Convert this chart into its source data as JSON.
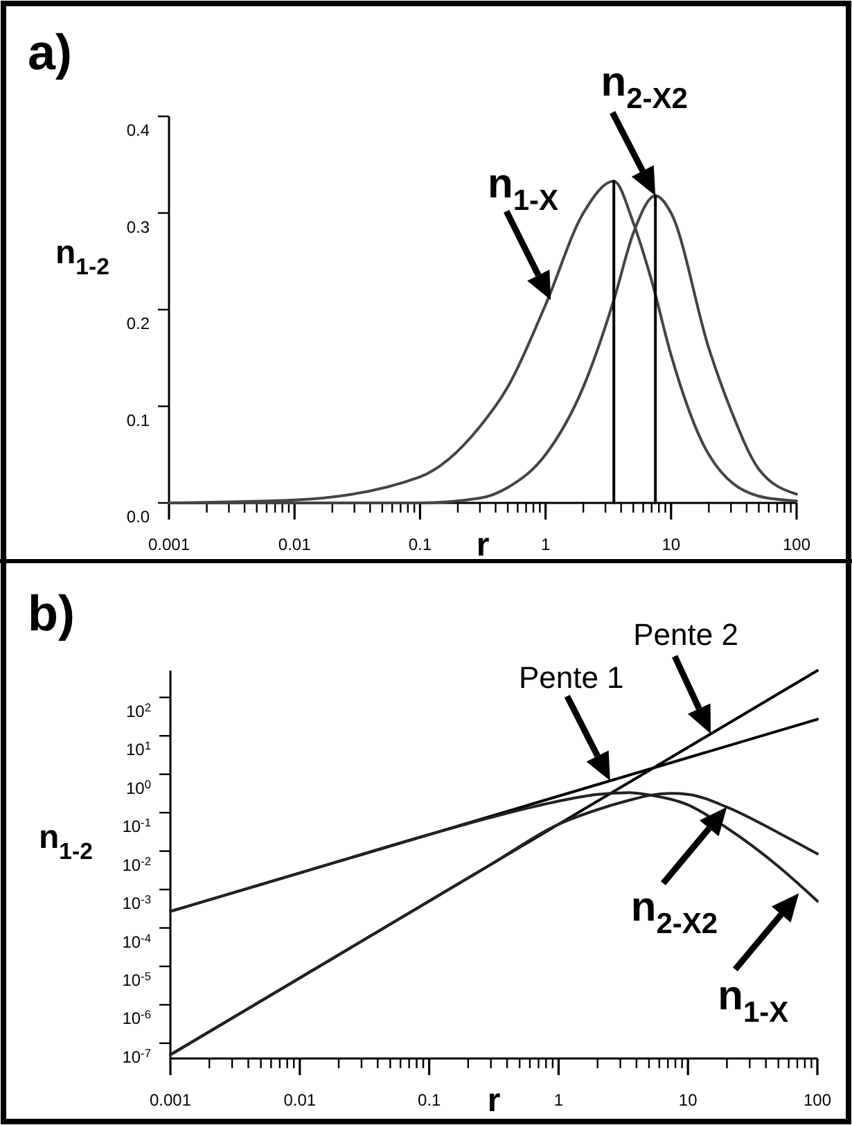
{
  "chart_data": [
    {
      "type": "line",
      "title": "a)",
      "xlabel": "r",
      "ylabel": "n$_{1-2}$",
      "log": "x",
      "grid": false,
      "xlim": [
        0.001,
        100
      ],
      "ylim": [
        0,
        0.4
      ],
      "xticks": [
        0.001,
        {
          "value": 0.002,
          "label": null
        },
        {
          "value": 0.003,
          "label": null
        },
        {
          "value": 0.004,
          "label": null
        },
        {
          "value": 0.005,
          "label": null
        },
        {
          "value": 0.006,
          "label": null
        },
        {
          "value": 0.007,
          "label": null
        },
        {
          "value": 0.008,
          "label": null
        },
        {
          "value": 0.009,
          "label": null
        },
        0.01,
        {
          "value": 0.02,
          "label": null
        },
        {
          "value": 0.03,
          "label": null
        },
        {
          "value": 0.04,
          "label": null
        },
        {
          "value": 0.05,
          "label": null
        },
        {
          "value": 0.06,
          "label": null
        },
        {
          "value": 0.07,
          "label": null
        },
        {
          "value": 0.08,
          "label": null
        },
        {
          "value": 0.09,
          "label": null
        },
        0.1,
        {
          "value": 0.2,
          "label": null
        },
        {
          "value": 0.3,
          "label": null
        },
        {
          "value": 0.4,
          "label": null
        },
        {
          "value": 0.5,
          "label": null
        },
        {
          "value": 0.6,
          "label": null
        },
        {
          "value": 0.7,
          "label": null
        },
        {
          "value": 0.8,
          "label": null
        },
        {
          "value": 0.9,
          "label": null
        },
        1,
        {
          "value": 2,
          "label": null
        },
        {
          "value": 3,
          "label": null
        },
        {
          "value": 4,
          "label": null
        },
        {
          "value": 5,
          "label": null
        },
        {
          "value": 6,
          "label": null
        },
        {
          "value": 7,
          "label": null
        },
        {
          "value": 8,
          "label": null
        },
        {
          "value": 9,
          "label": null
        },
        10,
        {
          "value": 20,
          "label": null
        },
        {
          "value": 30,
          "label": null
        },
        {
          "value": 40,
          "label": null
        },
        {
          "value": 50,
          "label": null
        },
        {
          "value": 60,
          "label": null
        },
        {
          "value": 70,
          "label": null
        },
        {
          "value": 80,
          "label": null
        },
        {
          "value": 90,
          "label": null
        },
        100
      ],
      "yticks": [
        {
          "value": 0,
          "label": "0.0"
        },
        0.1,
        0.2,
        0.3,
        0.4
      ],
      "series": [
        {
          "color": "#444444",
          "x": [
            0.001,
            0.01,
            0.1,
            0.3,
            0.5,
            1,
            2,
            3.5,
            5,
            7,
            10,
            20,
            50,
            100
          ],
          "values": [
            0,
            0.003,
            0.027,
            0.079,
            0.12,
            0.205,
            0.3,
            0.333,
            0.29,
            0.23,
            0.153,
            0.05,
            0.007,
            0.002
          ]
        },
        {
          "color": "#444444",
          "x": [
            0.001,
            0.01,
            0.1,
            0.3,
            0.5,
            1,
            2,
            3.5,
            5,
            7.5,
            10,
            20,
            30,
            50,
            100
          ],
          "values": [
            0,
            0,
            0,
            0.005,
            0.016,
            0.05,
            0.12,
            0.21,
            0.279,
            0.318,
            0.3,
            0.16,
            0.096,
            0.035,
            0.009
          ]
        },
        {
          "color": "#000000",
          "x": [
            3.5,
            3.5
          ],
          "values": [
            0,
            0.333
          ]
        },
        {
          "color": "#000000",
          "x": [
            7.5,
            7.5
          ],
          "values": [
            0,
            0.318
          ]
        }
      ],
      "annotations": [
        {
          "text": "n$_{1-X}$",
          "x": 1.1,
          "y": 0.21
        },
        {
          "text": "n$_{2-X2}$",
          "x": 7.5,
          "y": 0.318
        }
      ]
    },
    {
      "type": "line",
      "title": "b)",
      "xlabel": "r",
      "ylabel": "n$_{1-2}$",
      "log": "xy",
      "grid": false,
      "xlim": [
        0.001,
        100
      ],
      "ylim": [
        4e-08,
        500
      ],
      "xticks": [
        0.001,
        {
          "value": 0.002,
          "label": null
        },
        {
          "value": 0.003,
          "label": null
        },
        {
          "value": 0.004,
          "label": null
        },
        {
          "value": 0.005,
          "label": null
        },
        {
          "value": 0.006,
          "label": null
        },
        {
          "value": 0.007,
          "label": null
        },
        {
          "value": 0.008,
          "label": null
        },
        {
          "value": 0.009,
          "label": null
        },
        0.01,
        {
          "value": 0.02,
          "label": null
        },
        {
          "value": 0.03,
          "label": null
        },
        {
          "value": 0.04,
          "label": null
        },
        {
          "value": 0.05,
          "label": null
        },
        {
          "value": 0.06,
          "label": null
        },
        {
          "value": 0.07,
          "label": null
        },
        {
          "value": 0.08,
          "label": null
        },
        {
          "value": 0.09,
          "label": null
        },
        0.1,
        {
          "value": 0.2,
          "label": null
        },
        {
          "value": 0.3,
          "label": null
        },
        {
          "value": 0.4,
          "label": null
        },
        {
          "value": 0.5,
          "label": null
        },
        {
          "value": 0.6,
          "label": null
        },
        {
          "value": 0.7,
          "label": null
        },
        {
          "value": 0.8,
          "label": null
        },
        {
          "value": 0.9,
          "label": null
        },
        1,
        {
          "value": 2,
          "label": null
        },
        {
          "value": 3,
          "label": null
        },
        {
          "value": 4,
          "label": null
        },
        {
          "value": 5,
          "label": null
        },
        {
          "value": 6,
          "label": null
        },
        {
          "value": 7,
          "label": null
        },
        {
          "value": 8,
          "label": null
        },
        {
          "value": 9,
          "label": null
        },
        10,
        {
          "value": 20,
          "label": null
        },
        {
          "value": 30,
          "label": null
        },
        {
          "value": 40,
          "label": null
        },
        {
          "value": 50,
          "label": null
        },
        {
          "value": 60,
          "label": null
        },
        {
          "value": 70,
          "label": null
        },
        {
          "value": 80,
          "label": null
        },
        {
          "value": 90,
          "label": null
        },
        100
      ],
      "yticks": [
        {
          "value": 1e-07,
          "label": "10$^{-7}$"
        },
        {
          "value": 1e-06,
          "label": "10$^{-6}$"
        },
        {
          "value": 1e-05,
          "label": "10$^{-5}$"
        },
        {
          "value": 0.0001,
          "label": "10$^{-4}$"
        },
        {
          "value": 0.001,
          "label": "10$^{-3}$"
        },
        {
          "value": 0.01,
          "label": "10$^{-2}$"
        },
        {
          "value": 0.1,
          "label": "10$^{-1}$"
        },
        {
          "value": 1,
          "label": "10$^{0}$"
        },
        {
          "value": 10,
          "label": "10$^{1}$"
        },
        {
          "value": 100,
          "label": "10$^{2}$"
        }
      ],
      "series": [
        {
          "color": "#000000",
          "x": [
            0.001,
            100
          ],
          "values": [
            0.00027,
            27
          ]
        },
        {
          "color": "#000000",
          "x": [
            0.001,
            100
          ],
          "values": [
            5e-08,
            500
          ]
        },
        {
          "color": "#222222",
          "x": [
            0.001,
            0.01,
            0.1,
            0.3,
            1,
            2,
            3.5,
            5,
            10,
            20,
            50,
            100
          ],
          "values": [
            0.00027,
            0.0027,
            0.027,
            0.075,
            0.2,
            0.3,
            0.333,
            0.29,
            0.16,
            0.04,
            0.004,
            0.0005
          ]
        },
        {
          "color": "#222222",
          "x": [
            0.001,
            0.01,
            0.1,
            0.3,
            1,
            2,
            3.5,
            5,
            7.5,
            10,
            20,
            50,
            100
          ],
          "values": [
            5e-08,
            5e-06,
            0.0005,
            0.0045,
            0.05,
            0.12,
            0.21,
            0.28,
            0.318,
            0.3,
            0.14,
            0.03,
            0.0085
          ]
        }
      ],
      "annotations": [
        {
          "text": "Pente 1",
          "x": 2.5,
          "y": 0.68
        },
        {
          "text": "Pente 2",
          "x": 15,
          "y": 11.3
        },
        {
          "text": "n$_{2-X2}$",
          "x": 20,
          "y": 0.14
        },
        {
          "text": "n$_{1-X}$",
          "x": 72,
          "y": 0.0008
        }
      ]
    }
  ]
}
